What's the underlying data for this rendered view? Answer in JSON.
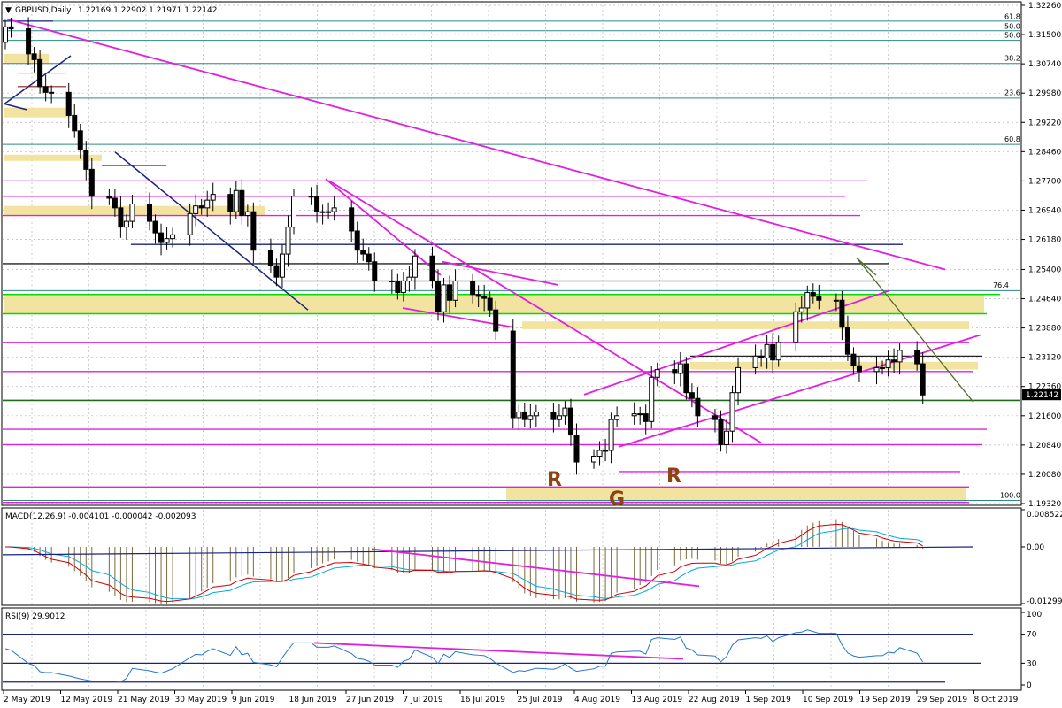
{
  "window": {
    "symbol_title": "GBPUSD,Daily",
    "ohlc": "1.22169 1.22902 1.21971 1.22142"
  },
  "colors": {
    "bull": "#ffffff",
    "bear": "#000000",
    "trend": "#e020e0",
    "blue": "#1a237e",
    "green": "#00dd00",
    "zone": "#f3e3a0",
    "grid": "#b8b8b8",
    "macd_signal": "#cc0000",
    "macd_main": "#00aadd",
    "histogram": "#7a6a3a",
    "rsi_line": "#2277cc"
  },
  "chart_data": [
    {
      "type": "candlestick",
      "symbol": "GBPUSD",
      "timeframe": "Daily",
      "ylim": [
        1.1932,
        1.3226
      ],
      "yticks": [
        "1.32260",
        "1.31500",
        "1.30740",
        "1.29980",
        "1.29220",
        "1.28460",
        "1.27700",
        "1.26940",
        "1.26180",
        "1.25400",
        "1.24640",
        "1.23880",
        "1.23120",
        "1.22360",
        "1.21600",
        "1.20840",
        "1.20080",
        "1.19320"
      ],
      "current_price": "1.22142",
      "x": [
        "2019-05-02",
        "2019-05-03",
        "2019-05-06",
        "2019-05-07",
        "2019-05-08",
        "2019-05-09",
        "2019-05-10",
        "2019-05-13",
        "2019-05-14",
        "2019-05-15",
        "2019-05-16",
        "2019-05-17",
        "2019-05-20",
        "2019-05-21",
        "2019-05-22",
        "2019-05-23",
        "2019-05-24",
        "2019-05-27",
        "2019-05-28",
        "2019-05-29",
        "2019-05-30",
        "2019-05-31",
        "2019-06-03",
        "2019-06-04",
        "2019-06-05",
        "2019-06-06",
        "2019-06-07",
        "2019-06-10",
        "2019-06-11",
        "2019-06-12",
        "2019-06-13",
        "2019-06-14",
        "2019-06-17",
        "2019-06-18",
        "2019-06-19",
        "2019-06-20",
        "2019-06-21",
        "2019-06-24",
        "2019-06-25",
        "2019-06-26",
        "2019-06-27",
        "2019-06-28",
        "2019-07-01",
        "2019-07-02",
        "2019-07-03",
        "2019-07-04",
        "2019-07-05",
        "2019-07-08",
        "2019-07-09",
        "2019-07-10",
        "2019-07-11",
        "2019-07-12",
        "2019-07-15",
        "2019-07-16",
        "2019-07-17",
        "2019-07-18",
        "2019-07-19",
        "2019-07-22",
        "2019-07-23",
        "2019-07-24",
        "2019-07-25",
        "2019-07-26",
        "2019-07-29",
        "2019-07-30",
        "2019-07-31",
        "2019-08-01",
        "2019-08-02",
        "2019-08-05",
        "2019-08-06",
        "2019-08-07",
        "2019-08-08",
        "2019-08-09",
        "2019-08-12",
        "2019-08-13",
        "2019-08-14",
        "2019-08-15",
        "2019-08-16",
        "2019-08-19",
        "2019-08-20",
        "2019-08-21",
        "2019-08-22",
        "2019-08-23",
        "2019-08-26",
        "2019-08-27",
        "2019-08-28",
        "2019-08-29",
        "2019-08-30",
        "2019-09-02",
        "2019-09-03",
        "2019-09-04",
        "2019-09-05",
        "2019-09-06",
        "2019-09-09",
        "2019-09-10",
        "2019-09-11",
        "2019-09-12",
        "2019-09-13",
        "2019-09-16",
        "2019-09-17",
        "2019-09-18",
        "2019-09-19",
        "2019-09-20",
        "2019-09-23",
        "2019-09-24",
        "2019-09-25",
        "2019-09-26",
        "2019-09-27",
        "2019-09-30",
        "2019-10-01",
        "2019-10-02",
        "2019-10-03",
        "2019-10-04",
        "2019-10-07",
        "2019-10-08"
      ],
      "close": [
        1.317,
        1.3165,
        1.31,
        1.3085,
        1.3015,
        1.3,
        1.3,
        1.294,
        1.29,
        1.285,
        1.28,
        1.273,
        1.2725,
        1.27,
        1.265,
        1.2665,
        1.271,
        1.2665,
        1.2635,
        1.261,
        1.262,
        1.263,
        1.2685,
        1.2705,
        1.27,
        1.272,
        1.2735,
        1.269,
        1.2745,
        1.268,
        1.269,
        1.259,
        1.255,
        1.252,
        1.258,
        1.265,
        1.273,
        1.273,
        1.269,
        1.269,
        1.269,
        1.27,
        1.264,
        1.259,
        1.258,
        1.256,
        1.251,
        1.251,
        1.248,
        1.251,
        1.252,
        1.2575,
        1.251,
        1.243,
        1.25,
        1.246,
        1.251,
        1.2475,
        1.247,
        1.2465,
        1.2435,
        1.238,
        1.2155,
        1.217,
        1.215,
        1.216,
        1.217,
        1.215,
        1.216,
        1.218,
        1.211,
        1.204,
        1.2055,
        1.207,
        1.207,
        1.215,
        1.216,
        1.2165,
        1.2165,
        1.2145,
        1.226,
        1.228,
        1.227,
        1.2295,
        1.222,
        1.2205,
        1.216,
        1.215,
        1.2085,
        1.212,
        1.222,
        1.2285,
        1.2315,
        1.231,
        1.2345,
        1.2305,
        1.235,
        1.243,
        1.244,
        1.248,
        1.247,
        1.246,
        1.246,
        1.239,
        1.232,
        1.229,
        1.2275,
        1.2285,
        1.2285,
        1.2305,
        1.23,
        1.233,
        1.2295,
        1.2214
      ],
      "series_labels": [],
      "annotations": [
        "R",
        "R",
        "G"
      ],
      "horizontal_level_labels": [
        "61.8",
        "50.0",
        "50.0",
        "38.2",
        "23.6",
        "60.8",
        "76.4",
        "100.0"
      ],
      "xtick_labels": [
        "2 May 2019",
        "12 May 2019",
        "21 May 2019",
        "30 May 2019",
        "9 Jun 2019",
        "18 Jun 2019",
        "27 Jun 2019",
        "7 Jul 2019",
        "16 Jul 2019",
        "25 Jul 2019",
        "4 Aug 2019",
        "13 Aug 2019",
        "22 Aug 2019",
        "1 Sep 2019",
        "10 Sep 2019",
        "19 Sep 2019",
        "29 Sep 2019",
        "8 Oct 2019"
      ]
    },
    {
      "type": "line",
      "indicator": "MACD",
      "header": "MACD(12,26,9) -0.004101 -0.000042 -0.002093",
      "ylim": [
        -0.01299,
        0.00852
      ],
      "yticks": [
        "0.008522",
        "0.00",
        "-0.01299"
      ]
    },
    {
      "type": "line",
      "indicator": "RSI",
      "header": "RSI(9) 29.9012",
      "ylim": [
        0,
        100
      ],
      "yticks": [
        "100",
        "70",
        "30",
        "0"
      ],
      "levels": [
        70,
        30
      ]
    }
  ]
}
